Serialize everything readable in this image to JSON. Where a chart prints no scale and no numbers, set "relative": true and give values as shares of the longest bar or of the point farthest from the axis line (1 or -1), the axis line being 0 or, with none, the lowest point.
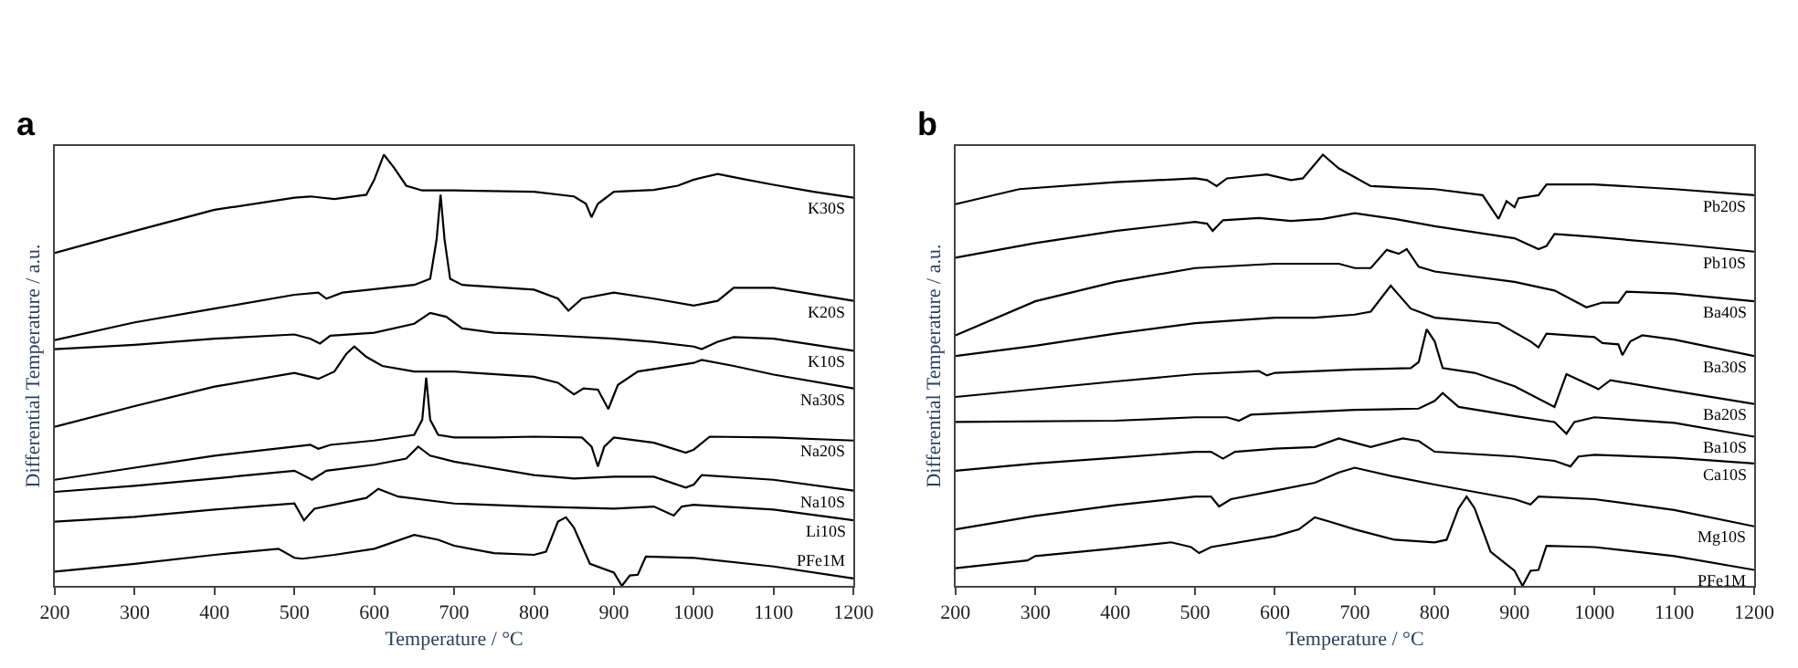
{
  "chart_data": [
    {
      "type": "line",
      "title": "a",
      "xlabel": "Temperature / °C",
      "ylabel": "Differential Temperature / a.u.",
      "relative": true,
      "xlim": [
        200,
        1200
      ],
      "xticks": [
        200,
        300,
        400,
        500,
        600,
        700,
        800,
        900,
        1000,
        1100,
        1200
      ],
      "grid": false,
      "legend": false,
      "marker": "none",
      "line_style": "solid",
      "series": [
        {
          "name": "K30S",
          "color": "#000000",
          "x": [
            200,
            300,
            400,
            500,
            520,
            550,
            590,
            600,
            612,
            625,
            640,
            660,
            700,
            800,
            850,
            865,
            872,
            880,
            900,
            950,
            980,
            1000,
            1030,
            1060,
            1100,
            1150,
            1200
          ],
          "values": [
            0.772,
            0.823,
            0.872,
            0.9,
            0.903,
            0.897,
            0.907,
            0.942,
            1.0,
            0.969,
            0.928,
            0.917,
            0.917,
            0.914,
            0.903,
            0.886,
            0.855,
            0.886,
            0.914,
            0.918,
            0.928,
            0.942,
            0.955,
            0.944,
            0.93,
            0.914,
            0.9
          ]
        },
        {
          "name": "K20S",
          "color": "#000000",
          "x": [
            200,
            300,
            400,
            500,
            530,
            540,
            560,
            600,
            650,
            670,
            678,
            683,
            688,
            695,
            710,
            800,
            830,
            843,
            860,
            900,
            950,
            1000,
            1030,
            1050,
            1100,
            1200
          ],
          "values": [
            0.57,
            0.611,
            0.643,
            0.675,
            0.68,
            0.666,
            0.68,
            0.688,
            0.698,
            0.712,
            0.803,
            0.907,
            0.803,
            0.712,
            0.698,
            0.687,
            0.666,
            0.638,
            0.666,
            0.68,
            0.666,
            0.65,
            0.661,
            0.691,
            0.691,
            0.661
          ]
        },
        {
          "name": "K10S",
          "color": "#000000",
          "x": [
            200,
            300,
            400,
            500,
            520,
            532,
            545,
            600,
            650,
            670,
            690,
            710,
            750,
            800,
            900,
            950,
            1000,
            1010,
            1030,
            1050,
            1100,
            1200
          ],
          "values": [
            0.549,
            0.559,
            0.573,
            0.583,
            0.573,
            0.562,
            0.58,
            0.587,
            0.608,
            0.633,
            0.624,
            0.597,
            0.587,
            0.583,
            0.573,
            0.566,
            0.555,
            0.549,
            0.566,
            0.577,
            0.573,
            0.545
          ]
        },
        {
          "name": "Na30S",
          "color": "#000000",
          "x": [
            200,
            300,
            400,
            500,
            520,
            530,
            550,
            565,
            575,
            590,
            610,
            650,
            700,
            800,
            830,
            850,
            862,
            880,
            893,
            905,
            930,
            1000,
            1010,
            1050,
            1100,
            1200
          ],
          "values": [
            0.369,
            0.417,
            0.462,
            0.494,
            0.485,
            0.48,
            0.497,
            0.538,
            0.555,
            0.531,
            0.51,
            0.497,
            0.497,
            0.485,
            0.471,
            0.444,
            0.458,
            0.455,
            0.41,
            0.466,
            0.497,
            0.517,
            0.524,
            0.51,
            0.49,
            0.458
          ]
        },
        {
          "name": "Na20S",
          "color": "#000000",
          "x": [
            200,
            300,
            400,
            500,
            520,
            530,
            545,
            600,
            650,
            660,
            665,
            670,
            680,
            700,
            750,
            800,
            860,
            872,
            880,
            888,
            900,
            950,
            990,
            1000,
            1020,
            1100,
            1200
          ],
          "values": [
            0.246,
            0.274,
            0.302,
            0.323,
            0.327,
            0.318,
            0.327,
            0.337,
            0.35,
            0.385,
            0.483,
            0.385,
            0.35,
            0.344,
            0.344,
            0.346,
            0.344,
            0.323,
            0.277,
            0.323,
            0.344,
            0.332,
            0.309,
            0.316,
            0.346,
            0.344,
            0.337
          ]
        },
        {
          "name": "Na10S",
          "color": "#000000",
          "x": [
            200,
            300,
            400,
            500,
            522,
            540,
            600,
            640,
            655,
            670,
            700,
            800,
            850,
            900,
            950,
            990,
            1000,
            1010,
            1100,
            1200
          ],
          "values": [
            0.218,
            0.232,
            0.249,
            0.267,
            0.246,
            0.267,
            0.281,
            0.295,
            0.323,
            0.302,
            0.288,
            0.257,
            0.249,
            0.253,
            0.253,
            0.228,
            0.235,
            0.257,
            0.246,
            0.221
          ]
        },
        {
          "name": "Li10S",
          "color": "#000000",
          "x": [
            200,
            300,
            400,
            500,
            512,
            525,
            590,
            605,
            630,
            700,
            800,
            900,
            950,
            975,
            985,
            1000,
            1100,
            1200
          ],
          "values": [
            0.149,
            0.16,
            0.177,
            0.191,
            0.152,
            0.179,
            0.204,
            0.225,
            0.207,
            0.191,
            0.184,
            0.179,
            0.184,
            0.163,
            0.184,
            0.188,
            0.177,
            0.152
          ]
        },
        {
          "name": "PFe1M",
          "color": "#000000",
          "x": [
            200,
            300,
            400,
            480,
            500,
            510,
            550,
            600,
            650,
            680,
            700,
            750,
            800,
            815,
            830,
            840,
            850,
            870,
            900,
            910,
            920,
            930,
            940,
            1000,
            1100,
            1200
          ],
          "values": [
            0.033,
            0.051,
            0.072,
            0.086,
            0.065,
            0.063,
            0.072,
            0.086,
            0.118,
            0.107,
            0.093,
            0.076,
            0.072,
            0.079,
            0.149,
            0.159,
            0.135,
            0.051,
            0.031,
            0.0,
            0.024,
            0.026,
            0.068,
            0.065,
            0.045,
            0.017
          ]
        }
      ]
    },
    {
      "type": "line",
      "title": "b",
      "xlabel": "Temperature / °C",
      "ylabel": "Differential Temperature / a.u.",
      "relative": true,
      "xlim": [
        200,
        1200
      ],
      "xticks": [
        200,
        300,
        400,
        500,
        600,
        700,
        800,
        900,
        1000,
        1100,
        1200
      ],
      "grid": false,
      "legend": false,
      "marker": "none",
      "line_style": "solid",
      "series": [
        {
          "name": "Pb20S",
          "color": "#000000",
          "x": [
            200,
            280,
            400,
            500,
            515,
            527,
            540,
            590,
            620,
            635,
            660,
            680,
            720,
            800,
            860,
            880,
            890,
            900,
            905,
            930,
            940,
            1000,
            1100,
            1200
          ],
          "values": [
            0.885,
            0.92,
            0.936,
            0.945,
            0.941,
            0.927,
            0.945,
            0.954,
            0.941,
            0.945,
            1.0,
            0.968,
            0.927,
            0.92,
            0.906,
            0.851,
            0.892,
            0.878,
            0.899,
            0.906,
            0.931,
            0.931,
            0.92,
            0.906
          ]
        },
        {
          "name": "Pb10S",
          "color": "#000000",
          "x": [
            200,
            300,
            400,
            500,
            515,
            522,
            535,
            580,
            620,
            660,
            700,
            750,
            800,
            900,
            930,
            940,
            950,
            1000,
            1100,
            1200
          ],
          "values": [
            0.761,
            0.795,
            0.823,
            0.844,
            0.84,
            0.823,
            0.848,
            0.853,
            0.846,
            0.851,
            0.864,
            0.851,
            0.834,
            0.806,
            0.781,
            0.788,
            0.816,
            0.809,
            0.793,
            0.775
          ]
        },
        {
          "name": "Ba40S",
          "color": "#000000",
          "x": [
            200,
            300,
            400,
            500,
            600,
            680,
            700,
            720,
            740,
            755,
            765,
            780,
            800,
            900,
            950,
            990,
            1010,
            1030,
            1040,
            1100,
            1200
          ],
          "values": [
            0.581,
            0.66,
            0.705,
            0.737,
            0.747,
            0.747,
            0.737,
            0.737,
            0.779,
            0.77,
            0.781,
            0.74,
            0.729,
            0.705,
            0.685,
            0.646,
            0.657,
            0.657,
            0.682,
            0.678,
            0.66
          ]
        },
        {
          "name": "Ba30S",
          "color": "#000000",
          "x": [
            200,
            300,
            400,
            500,
            600,
            650,
            700,
            720,
            745,
            770,
            800,
            880,
            920,
            930,
            940,
            1000,
            1010,
            1030,
            1035,
            1045,
            1060,
            1100,
            1200
          ],
          "values": [
            0.533,
            0.557,
            0.585,
            0.609,
            0.622,
            0.622,
            0.629,
            0.636,
            0.696,
            0.643,
            0.622,
            0.609,
            0.567,
            0.553,
            0.585,
            0.577,
            0.563,
            0.56,
            0.535,
            0.567,
            0.581,
            0.571,
            0.533
          ]
        },
        {
          "name": "Ba20S",
          "color": "#000000",
          "x": [
            200,
            300,
            400,
            500,
            580,
            590,
            600,
            700,
            770,
            780,
            790,
            800,
            810,
            850,
            900,
            950,
            965,
            1000,
            1005,
            1020,
            1100,
            1200
          ],
          "values": [
            0.438,
            0.456,
            0.474,
            0.491,
            0.498,
            0.488,
            0.494,
            0.502,
            0.505,
            0.519,
            0.595,
            0.567,
            0.505,
            0.494,
            0.463,
            0.415,
            0.491,
            0.461,
            0.456,
            0.477,
            0.452,
            0.422
          ]
        },
        {
          "name": "Ba10S",
          "color": "#000000",
          "x": [
            200,
            400,
            500,
            540,
            555,
            570,
            700,
            780,
            800,
            810,
            830,
            900,
            950,
            965,
            975,
            1000,
            1100,
            1200
          ],
          "values": [
            0.38,
            0.383,
            0.391,
            0.391,
            0.383,
            0.397,
            0.408,
            0.411,
            0.429,
            0.447,
            0.415,
            0.394,
            0.38,
            0.353,
            0.38,
            0.391,
            0.378,
            0.346
          ]
        },
        {
          "name": "Ca10S",
          "color": "#000000",
          "x": [
            200,
            300,
            400,
            500,
            520,
            535,
            550,
            600,
            650,
            680,
            700,
            720,
            760,
            780,
            800,
            900,
            950,
            970,
            980,
            1000,
            1100,
            1200
          ],
          "values": [
            0.267,
            0.284,
            0.297,
            0.311,
            0.311,
            0.295,
            0.311,
            0.318,
            0.322,
            0.342,
            0.332,
            0.322,
            0.342,
            0.336,
            0.311,
            0.3,
            0.29,
            0.277,
            0.3,
            0.304,
            0.297,
            0.284
          ]
        },
        {
          "name": "Mg10S",
          "color": "#000000",
          "x": [
            200,
            300,
            400,
            500,
            520,
            530,
            545,
            600,
            650,
            680,
            700,
            750,
            800,
            900,
            920,
            930,
            1000,
            1100,
            1200
          ],
          "values": [
            0.131,
            0.162,
            0.187,
            0.207,
            0.207,
            0.184,
            0.201,
            0.221,
            0.239,
            0.263,
            0.274,
            0.253,
            0.235,
            0.201,
            0.189,
            0.207,
            0.201,
            0.176,
            0.138
          ]
        },
        {
          "name": "PFe1M",
          "color": "#000000",
          "x": [
            200,
            290,
            300,
            400,
            470,
            495,
            505,
            520,
            600,
            630,
            650,
            670,
            700,
            750,
            800,
            815,
            830,
            840,
            850,
            870,
            900,
            910,
            920,
            930,
            940,
            1000,
            1100,
            1200
          ],
          "values": [
            0.041,
            0.059,
            0.069,
            0.087,
            0.101,
            0.09,
            0.076,
            0.09,
            0.115,
            0.131,
            0.159,
            0.148,
            0.131,
            0.107,
            0.101,
            0.107,
            0.18,
            0.207,
            0.18,
            0.079,
            0.035,
            0.0,
            0.035,
            0.037,
            0.093,
            0.09,
            0.069,
            0.037
          ]
        }
      ]
    }
  ]
}
